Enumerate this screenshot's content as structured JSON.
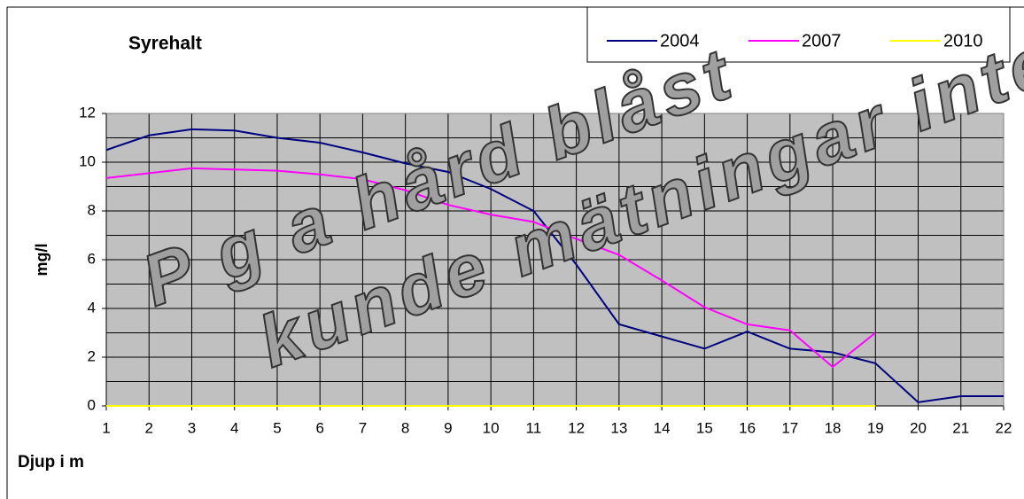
{
  "chart_data": {
    "type": "line",
    "title": "Syrehalt",
    "y_label": "mg/l",
    "x_label": "Djup i m",
    "annotations": [
      "P g a hård blåst",
      "kunde mätningar inte"
    ],
    "categories": [
      1,
      2,
      3,
      4,
      5,
      6,
      7,
      8,
      9,
      10,
      11,
      12,
      13,
      14,
      15,
      16,
      17,
      18,
      19,
      20,
      21,
      22
    ],
    "series": [
      {
        "name": "2004",
        "color": "#000080",
        "values": [
          10.5,
          11.1,
          11.35,
          11.3,
          11.0,
          10.8,
          10.4,
          9.95,
          9.6,
          8.9,
          8.0,
          5.8,
          3.35,
          2.85,
          2.35,
          3.05,
          2.35,
          2.2,
          1.75,
          0.15,
          0.4,
          0.4
        ]
      },
      {
        "name": "2007",
        "color": "#ff00ff",
        "values": [
          9.35,
          9.55,
          9.75,
          9.7,
          9.65,
          9.5,
          9.3,
          8.85,
          8.25,
          7.85,
          7.55,
          6.85,
          6.2,
          5.15,
          4.05,
          3.35,
          3.1,
          1.6,
          3.0,
          null,
          null,
          null
        ]
      },
      {
        "name": "2010",
        "color": "#ffff00",
        "values": [
          0,
          0,
          0,
          0,
          0,
          0,
          0,
          0,
          0,
          0,
          0,
          0,
          0,
          0,
          0,
          0,
          0,
          0,
          0,
          null,
          null,
          null
        ]
      }
    ],
    "ylim": [
      0,
      12
    ],
    "yticks": [
      0,
      2,
      4,
      6,
      8,
      10,
      12
    ],
    "minor_yticks": [
      1,
      3,
      5,
      7,
      9,
      11
    ],
    "grid": true,
    "legend": "top-right",
    "plot_background": "#c0c0c0"
  }
}
